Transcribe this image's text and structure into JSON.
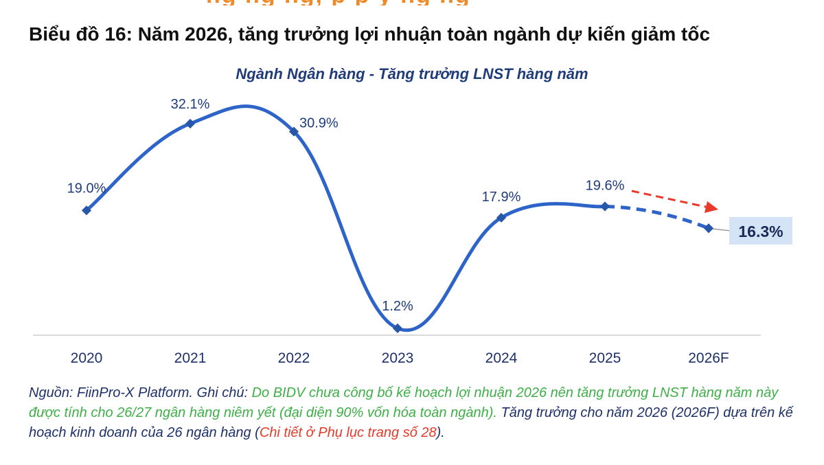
{
  "header": {
    "title": "Biểu đồ 16: Năm 2026, tăng trưởng lợi nhuận toàn ngành dự kiến giảm tốc",
    "top_fragment": "ng   ng      ng,    p    p    y         ng   ng"
  },
  "chart_data": {
    "type": "line",
    "title": "Ngành Ngân hàng - Tăng trưởng LNST hàng năm",
    "xlabel": "",
    "ylabel": "",
    "categories": [
      "2020",
      "2021",
      "2022",
      "2023",
      "2024",
      "2025",
      "2026F"
    ],
    "series": [
      {
        "values": [
          19.0,
          32.1,
          30.9,
          1.2,
          17.9,
          19.6,
          16.3
        ],
        "labels": [
          "19.0%",
          "32.1%",
          "30.9%",
          "1.2%",
          "17.9%",
          "19.6%",
          "16.3%"
        ],
        "forecast_from_index": 5,
        "color": "#2e63c8"
      }
    ],
    "ylim": [
      0,
      35
    ],
    "grid": false,
    "legend": "none",
    "annotations": [
      "forecast-arrow"
    ],
    "colors": {
      "line": "#2e63c8",
      "marker": "#2857a8",
      "arrow": "#e8392b",
      "highlight_box": "#d5e3f7",
      "label": "#1f3b7a"
    }
  },
  "note": {
    "source_prefix": "Nguồn: FiinPro-X Platform. Ghi chú: ",
    "green_text": "Do BIDV chưa công bố kế hoạch lợi nhuận 2026 nên tăng trưởng LNST hàng năm này được tính cho 26/27 ngân hàng niêm yết (đại diện 90% vốn hóa toàn ngành).",
    "middle_text": " Tăng trưởng cho năm 2026 (2026F) dựa trên kế hoạch kinh doanh của 26 ngân hàng (",
    "red_text": "Chi tiết ở Phụ lục trang số 28",
    "end_text": ")."
  }
}
